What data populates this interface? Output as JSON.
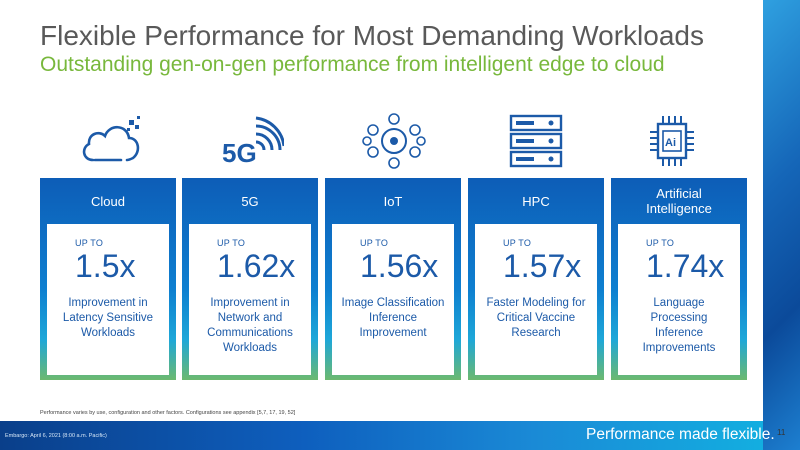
{
  "slide": {
    "title": "Flexible Performance for Most Demanding Workloads",
    "subtitle": "Outstanding gen-on-gen performance from intelligent edge to cloud",
    "footnote": "Performance varies by use, configuration and other factors. Configurations see appendix [5,7, 17, 19, 52]",
    "embargo": "Embargo: April 6, 2021 (8:00 a.m. Pacific)",
    "tagline": "Performance made flexible.",
    "page_number": "11"
  },
  "cards": [
    {
      "icon": "cloud-icon",
      "heading": "Cloud",
      "up_to": "UP TO",
      "value": "1.5x",
      "description": "Improvement in Latency Sensitive Workloads"
    },
    {
      "icon": "5g-icon",
      "heading": "5G",
      "up_to": "UP TO",
      "value": "1.62x",
      "description": "Improvement in Network and Communications Workloads"
    },
    {
      "icon": "iot-network-icon",
      "heading": "IoT",
      "up_to": "UP TO",
      "value": "1.56x",
      "description": "Image Classification Inference Improvement"
    },
    {
      "icon": "server-rack-icon",
      "heading": "HPC",
      "up_to": "UP TO",
      "value": "1.57x",
      "description": "Faster Modeling for Critical Vaccine Research"
    },
    {
      "icon": "ai-chip-icon",
      "heading": "Artificial Intelligence",
      "up_to": "UP TO",
      "value": "1.74x",
      "description": "Language Processing Inference Improvements"
    }
  ],
  "colors": {
    "title_gray": "#595959",
    "subtitle_green": "#78b83c",
    "brand_blue": "#1c5aa8"
  }
}
